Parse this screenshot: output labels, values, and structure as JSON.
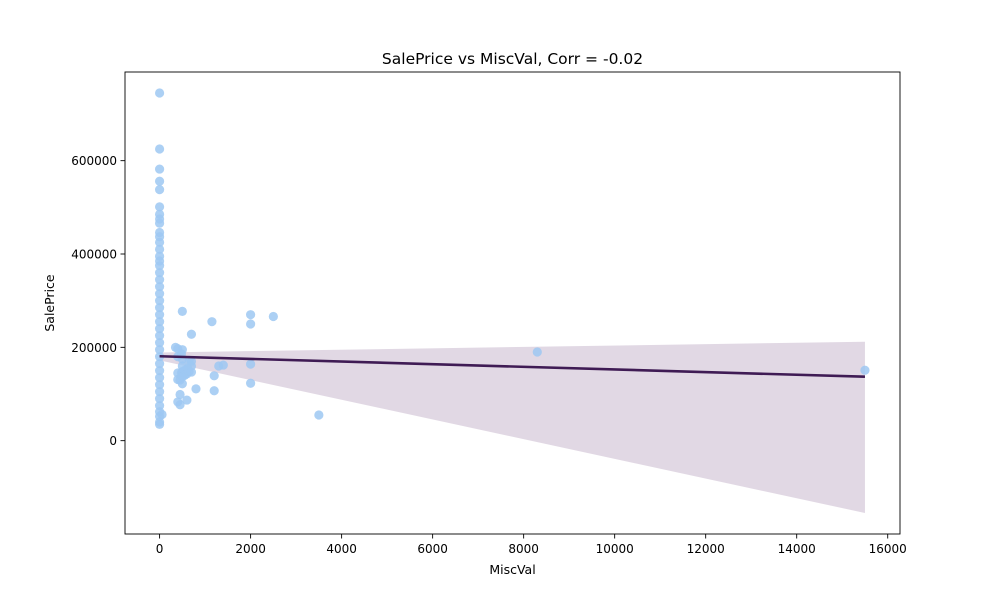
{
  "chart_data": {
    "type": "scatter",
    "title": "SalePrice vs MiscVal, Corr = -0.02",
    "xlabel": "MiscVal",
    "ylabel": "SalePrice",
    "xlim": [
      -760,
      16270
    ],
    "ylim": [
      -200000,
      790000
    ],
    "xticks": [
      0,
      2000,
      4000,
      6000,
      8000,
      10000,
      12000,
      14000,
      16000
    ],
    "yticks": [
      0,
      200000,
      400000,
      600000
    ],
    "grid": false,
    "colors": {
      "points": "#9ec8f2",
      "regression_line": "#3f1b54",
      "confidence_band": "#d4c8d8"
    },
    "regression": {
      "x": [
        0,
        15500
      ],
      "y": [
        180900,
        137000
      ],
      "ci_lower": [
        172000,
        -155000
      ],
      "ci_upper": [
        189000,
        212000
      ]
    },
    "points": [
      {
        "x": 0,
        "y": 745000
      },
      {
        "x": 0,
        "y": 625000
      },
      {
        "x": 0,
        "y": 582000
      },
      {
        "x": 0,
        "y": 556000
      },
      {
        "x": 0,
        "y": 538000
      },
      {
        "x": 0,
        "y": 501000
      },
      {
        "x": 0,
        "y": 485000
      },
      {
        "x": 0,
        "y": 475000
      },
      {
        "x": 0,
        "y": 466000
      },
      {
        "x": 0,
        "y": 446000
      },
      {
        "x": 0,
        "y": 437000
      },
      {
        "x": 0,
        "y": 425000
      },
      {
        "x": 0,
        "y": 410000
      },
      {
        "x": 0,
        "y": 395000
      },
      {
        "x": 0,
        "y": 385000
      },
      {
        "x": 0,
        "y": 375000
      },
      {
        "x": 0,
        "y": 360000
      },
      {
        "x": 0,
        "y": 345000
      },
      {
        "x": 0,
        "y": 330000
      },
      {
        "x": 0,
        "y": 315000
      },
      {
        "x": 0,
        "y": 300000
      },
      {
        "x": 0,
        "y": 285000
      },
      {
        "x": 0,
        "y": 270000
      },
      {
        "x": 0,
        "y": 255000
      },
      {
        "x": 0,
        "y": 240000
      },
      {
        "x": 0,
        "y": 225000
      },
      {
        "x": 0,
        "y": 210000
      },
      {
        "x": 0,
        "y": 195000
      },
      {
        "x": 0,
        "y": 180000
      },
      {
        "x": 0,
        "y": 165000
      },
      {
        "x": 0,
        "y": 150000
      },
      {
        "x": 0,
        "y": 135000
      },
      {
        "x": 0,
        "y": 120000
      },
      {
        "x": 0,
        "y": 105000
      },
      {
        "x": 0,
        "y": 90000
      },
      {
        "x": 0,
        "y": 75000
      },
      {
        "x": 0,
        "y": 62000
      },
      {
        "x": 0,
        "y": 52000
      },
      {
        "x": 0,
        "y": 40000
      },
      {
        "x": 0,
        "y": 35000
      },
      {
        "x": 54,
        "y": 56000
      },
      {
        "x": 350,
        "y": 200000
      },
      {
        "x": 400,
        "y": 197000
      },
      {
        "x": 400,
        "y": 180000
      },
      {
        "x": 400,
        "y": 145000
      },
      {
        "x": 400,
        "y": 131000
      },
      {
        "x": 400,
        "y": 83000
      },
      {
        "x": 450,
        "y": 130000
      },
      {
        "x": 450,
        "y": 99000
      },
      {
        "x": 450,
        "y": 77000
      },
      {
        "x": 480,
        "y": 186000
      },
      {
        "x": 480,
        "y": 145000
      },
      {
        "x": 500,
        "y": 277000
      },
      {
        "x": 500,
        "y": 195000
      },
      {
        "x": 500,
        "y": 175000
      },
      {
        "x": 500,
        "y": 160000
      },
      {
        "x": 500,
        "y": 148000
      },
      {
        "x": 500,
        "y": 137000
      },
      {
        "x": 500,
        "y": 122000
      },
      {
        "x": 550,
        "y": 140000
      },
      {
        "x": 560,
        "y": 151000
      },
      {
        "x": 600,
        "y": 143000
      },
      {
        "x": 600,
        "y": 87000
      },
      {
        "x": 620,
        "y": 155000
      },
      {
        "x": 650,
        "y": 172000
      },
      {
        "x": 650,
        "y": 148000
      },
      {
        "x": 700,
        "y": 228000
      },
      {
        "x": 700,
        "y": 170000
      },
      {
        "x": 700,
        "y": 160000
      },
      {
        "x": 700,
        "y": 147000
      },
      {
        "x": 800,
        "y": 111000
      },
      {
        "x": 1150,
        "y": 255000
      },
      {
        "x": 1200,
        "y": 139000
      },
      {
        "x": 1200,
        "y": 107000
      },
      {
        "x": 1300,
        "y": 160000
      },
      {
        "x": 1400,
        "y": 162000
      },
      {
        "x": 2000,
        "y": 270000
      },
      {
        "x": 2000,
        "y": 250000
      },
      {
        "x": 2000,
        "y": 164000
      },
      {
        "x": 2000,
        "y": 123000
      },
      {
        "x": 2500,
        "y": 266000
      },
      {
        "x": 3500,
        "y": 55000
      },
      {
        "x": 8300,
        "y": 190000
      },
      {
        "x": 15500,
        "y": 151000
      }
    ]
  }
}
